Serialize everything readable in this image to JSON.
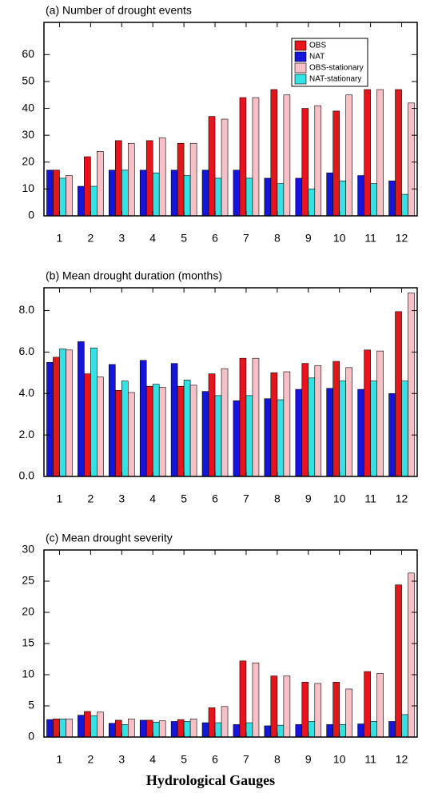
{
  "chart_data": [
    {
      "type": "bar",
      "title": "(a) Number of drought events",
      "categories": [
        "1",
        "2",
        "3",
        "4",
        "5",
        "6",
        "7",
        "8",
        "9",
        "10",
        "11",
        "12"
      ],
      "series": [
        {
          "name": "NAT",
          "color": "#1414dc",
          "values": [
            17,
            11,
            17,
            17,
            17,
            17,
            17,
            14,
            14,
            16,
            15,
            13
          ]
        },
        {
          "name": "OBS",
          "color": "#e8141c",
          "values": [
            17,
            22,
            28,
            28,
            27,
            37,
            44,
            47,
            40,
            39,
            47,
            47
          ]
        },
        {
          "name": "NAT-stationary",
          "color": "#33e3e3",
          "values": [
            14,
            11,
            17,
            16,
            15,
            14,
            14,
            12,
            10,
            13,
            12,
            8
          ]
        },
        {
          "name": "OBS-stationary",
          "color": "#f6c0c6",
          "values": [
            15,
            24,
            27,
            29,
            27,
            36,
            44,
            45,
            41,
            45,
            47,
            42
          ]
        }
      ],
      "legend_order": [
        1,
        0,
        3,
        2
      ],
      "legend": "top-right",
      "ylim": [
        0,
        72
      ],
      "yticks": [
        0,
        10,
        20,
        30,
        40,
        50,
        60
      ]
    },
    {
      "type": "bar",
      "title": "(b) Mean drought duration (months)",
      "categories": [
        "1",
        "2",
        "3",
        "4",
        "5",
        "6",
        "7",
        "8",
        "9",
        "10",
        "11",
        "12"
      ],
      "series": [
        {
          "color": "#1414dc",
          "values": [
            5.5,
            6.5,
            5.4,
            5.6,
            5.45,
            4.1,
            3.65,
            3.75,
            4.2,
            4.25,
            4.2,
            4.0
          ]
        },
        {
          "color": "#e8141c",
          "values": [
            5.75,
            4.95,
            4.15,
            4.35,
            4.35,
            4.95,
            5.7,
            5.0,
            5.45,
            5.55,
            6.1,
            7.95
          ]
        },
        {
          "color": "#33e3e3",
          "values": [
            6.15,
            6.2,
            4.6,
            4.45,
            4.65,
            3.9,
            3.9,
            3.7,
            4.75,
            4.6,
            4.6,
            4.6
          ]
        },
        {
          "color": "#f6c0c6",
          "values": [
            6.1,
            4.8,
            4.05,
            4.3,
            4.4,
            5.2,
            5.7,
            5.05,
            5.35,
            5.25,
            6.05,
            8.85
          ]
        }
      ],
      "ylim": [
        0,
        9.1
      ],
      "yticks": [
        {
          "value": 0,
          "label": "0.0"
        },
        {
          "value": 2,
          "label": "2.0"
        },
        {
          "value": 4,
          "label": "4.0"
        },
        {
          "value": 6,
          "label": "6.0"
        },
        {
          "value": 8,
          "label": "8.0"
        }
      ]
    },
    {
      "type": "bar",
      "title": "(c) Mean drought severity",
      "categories": [
        "1",
        "2",
        "3",
        "4",
        "5",
        "6",
        "7",
        "8",
        "9",
        "10",
        "11",
        "12"
      ],
      "series": [
        {
          "color": "#1414dc",
          "values": [
            2.8,
            3.5,
            2.2,
            2.7,
            2.5,
            2.3,
            2.0,
            1.8,
            2.0,
            2.0,
            2.1,
            2.5
          ]
        },
        {
          "color": "#e8141c",
          "values": [
            2.9,
            4.1,
            2.7,
            2.7,
            2.8,
            4.7,
            12.2,
            9.8,
            8.8,
            8.8,
            10.5,
            24.4
          ]
        },
        {
          "color": "#33e3e3",
          "values": [
            2.9,
            3.4,
            2.0,
            2.4,
            2.5,
            2.3,
            2.3,
            1.9,
            2.5,
            2.0,
            2.5,
            3.6
          ]
        },
        {
          "color": "#f6c0c6",
          "values": [
            2.9,
            4.0,
            2.9,
            2.6,
            2.9,
            4.9,
            11.9,
            9.8,
            8.6,
            7.7,
            10.2,
            26.3
          ]
        }
      ],
      "ylim": [
        0,
        30
      ],
      "yticks": [
        0,
        5,
        10,
        15,
        20,
        25,
        30
      ],
      "x_label": "Hydrological Gauges"
    }
  ]
}
